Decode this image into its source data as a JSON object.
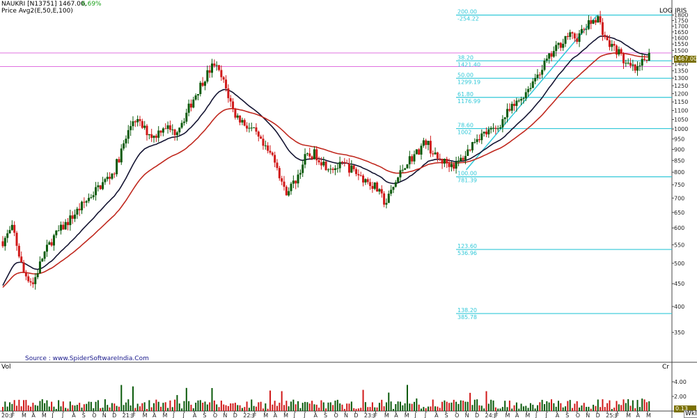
{
  "header": {
    "title": "NAUKRI [N13751] 1467.00,",
    "change": "6.69%",
    "indicator": "Price  Avg2(E,50,E,100)"
  },
  "labels": {
    "log": "LOG",
    "iris": "IRIS",
    "vol": "Vol",
    "cr": "Cr",
    "source": "Source : www.SpiderSoftwareIndia.Com",
    "last_price": "1467.00",
    "last_vol": "0.13",
    "period": "Wkl"
  },
  "colors": {
    "up": "#0a5a0a",
    "down": "#d01818",
    "ema50": "#141432",
    "ema100": "#c0281e",
    "fib": "#30c8d8",
    "magenta": "#e070e0"
  },
  "chart_data": {
    "type": "candlestick",
    "scale": "log",
    "y_ticks": [
      350,
      400,
      450,
      500,
      550,
      600,
      650,
      700,
      750,
      800,
      850,
      900,
      950,
      1000,
      1050,
      1100,
      1150,
      1200,
      1250,
      1300,
      1350,
      1400,
      1450,
      1500,
      1550,
      1600,
      1650,
      1700,
      1750,
      1800
    ],
    "x_labels": [
      "20:J",
      "F",
      "M",
      "A",
      "M",
      "J",
      "J",
      "A",
      "S",
      "O",
      "N",
      "D",
      "21:J",
      "F",
      "M",
      "A",
      "M",
      "J",
      "J",
      "A",
      "S",
      "O",
      "N",
      "D",
      "22:J",
      "F",
      "M",
      "A",
      "M",
      "J",
      "J",
      "A",
      "S",
      "O",
      "N",
      "D",
      "23:J",
      "F",
      "M",
      "A",
      "M",
      "J",
      "J",
      "A",
      "S",
      "O",
      "N",
      "D",
      "24:J",
      "F",
      "M",
      "A",
      "M",
      "J",
      "J",
      "A",
      "S",
      "O",
      "N",
      "D",
      "25:J",
      "F",
      "M",
      "A",
      "M"
    ],
    "price_anchors": [
      [
        "2020-01",
        560
      ],
      [
        "2020-02",
        600
      ],
      [
        "2020-03",
        480
      ],
      [
        "2020-04",
        450
      ],
      [
        "2020-05",
        520
      ],
      [
        "2020-06",
        570
      ],
      [
        "2020-08",
        640
      ],
      [
        "2020-10",
        720
      ],
      [
        "2020-12",
        800
      ],
      [
        "2021-02",
        1060
      ],
      [
        "2021-03",
        1000
      ],
      [
        "2021-04",
        960
      ],
      [
        "2021-05",
        1020
      ],
      [
        "2021-06",
        980
      ],
      [
        "2021-07",
        1060
      ],
      [
        "2021-08",
        1180
      ],
      [
        "2021-09",
        1300
      ],
      [
        "2021-10",
        1400
      ],
      [
        "2021-11",
        1260
      ],
      [
        "2021-12",
        1080
      ],
      [
        "2022-02",
        980
      ],
      [
        "2022-03",
        900
      ],
      [
        "2022-04",
        860
      ],
      [
        "2022-05",
        720
      ],
      [
        "2022-06",
        760
      ],
      [
        "2022-07",
        860
      ],
      [
        "2022-08",
        880
      ],
      [
        "2022-09",
        830
      ],
      [
        "2022-10",
        820
      ],
      [
        "2022-11",
        830
      ],
      [
        "2022-12",
        800
      ],
      [
        "2023-02",
        740
      ],
      [
        "2023-03",
        680
      ],
      [
        "2023-04",
        760
      ],
      [
        "2023-05",
        840
      ],
      [
        "2023-06",
        880
      ],
      [
        "2023-07",
        940
      ],
      [
        "2023-08",
        860
      ],
      [
        "2023-09",
        840
      ],
      [
        "2023-10",
        830
      ],
      [
        "2023-11",
        880
      ],
      [
        "2023-12",
        960
      ],
      [
        "2024-02",
        1000
      ],
      [
        "2024-03",
        1080
      ],
      [
        "2024-04",
        1140
      ],
      [
        "2024-05",
        1220
      ],
      [
        "2024-06",
        1320
      ],
      [
        "2024-07",
        1420
      ],
      [
        "2024-08",
        1520
      ],
      [
        "2024-09",
        1620
      ],
      [
        "2024-10",
        1600
      ],
      [
        "2024-11",
        1700
      ],
      [
        "2024-12",
        1790
      ],
      [
        "2025-01",
        1560
      ],
      [
        "2025-02",
        1500
      ],
      [
        "2025-03",
        1380
      ],
      [
        "2025-04",
        1350
      ],
      [
        "2025-05",
        1467
      ]
    ],
    "fib_levels": [
      {
        "pct": "200.00",
        "price": "-254.22",
        "value": 1800
      },
      {
        "pct": "38.20",
        "price": "1421.40",
        "value": 1421.4
      },
      {
        "pct": "50.00",
        "price": "1299.19",
        "value": 1299.19
      },
      {
        "pct": "61.80",
        "price": "1176.99",
        "value": 1176.99
      },
      {
        "pct": "78.60",
        "price": "1002",
        "value": 1002
      },
      {
        "pct": "100.00",
        "price": "781.39",
        "value": 781.39
      },
      {
        "pct": "123.60",
        "price": "536.96",
        "value": 536.96
      },
      {
        "pct": "138.20",
        "price": "385.78",
        "value": 385.78
      }
    ],
    "horizontal_lines": [
      1480,
      1380
    ],
    "volume_ticks": [
      "4.00",
      "2.00"
    ]
  }
}
